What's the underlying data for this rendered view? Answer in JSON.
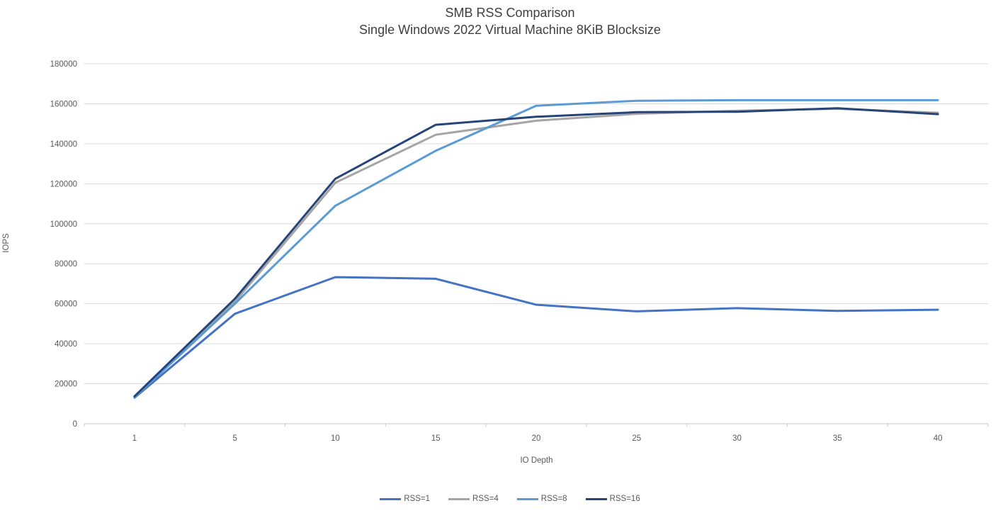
{
  "chart_data": {
    "type": "line",
    "title": "SMB RSS Comparison",
    "subtitle": "Single Windows 2022 Virtual Machine 8KiB Blocksize",
    "xlabel": "IO Depth",
    "ylabel": "IOPS",
    "x": [
      1,
      5,
      10,
      15,
      20,
      25,
      30,
      35,
      40
    ],
    "x_tick_labels": [
      "1",
      "5",
      "10",
      "15",
      "20",
      "25",
      "30",
      "35",
      "40"
    ],
    "ylim": [
      0,
      180000
    ],
    "y_tick_step": 20000,
    "y_tick_labels": [
      "0",
      "20000",
      "40000",
      "60000",
      "80000",
      "100000",
      "120000",
      "140000",
      "160000",
      "180000"
    ],
    "grid": true,
    "legend_position": "bottom",
    "series": [
      {
        "name": "RSS=1",
        "color": "#4472C4",
        "values": [
          13000,
          55000,
          73300,
          72500,
          59500,
          56200,
          57800,
          56400,
          57000
        ]
      },
      {
        "name": "RSS=4",
        "color": "#A5A5A5",
        "values": [
          13500,
          61000,
          120500,
          144500,
          151500,
          155000,
          156500,
          157500,
          155500
        ]
      },
      {
        "name": "RSS=8",
        "color": "#5B9BD5",
        "values": [
          13200,
          60000,
          109000,
          136500,
          159000,
          161500,
          161800,
          161800,
          161800
        ]
      },
      {
        "name": "RSS=16",
        "color": "#264478",
        "values": [
          13700,
          62500,
          122500,
          149500,
          153500,
          155800,
          156000,
          157800,
          154800
        ]
      }
    ]
  },
  "colors": {
    "background": "#FFFFFF",
    "gridline": "#D9D9D9",
    "axis_line": "#C9C9C9",
    "tick_label": "#595959",
    "title_text": "#404040"
  }
}
